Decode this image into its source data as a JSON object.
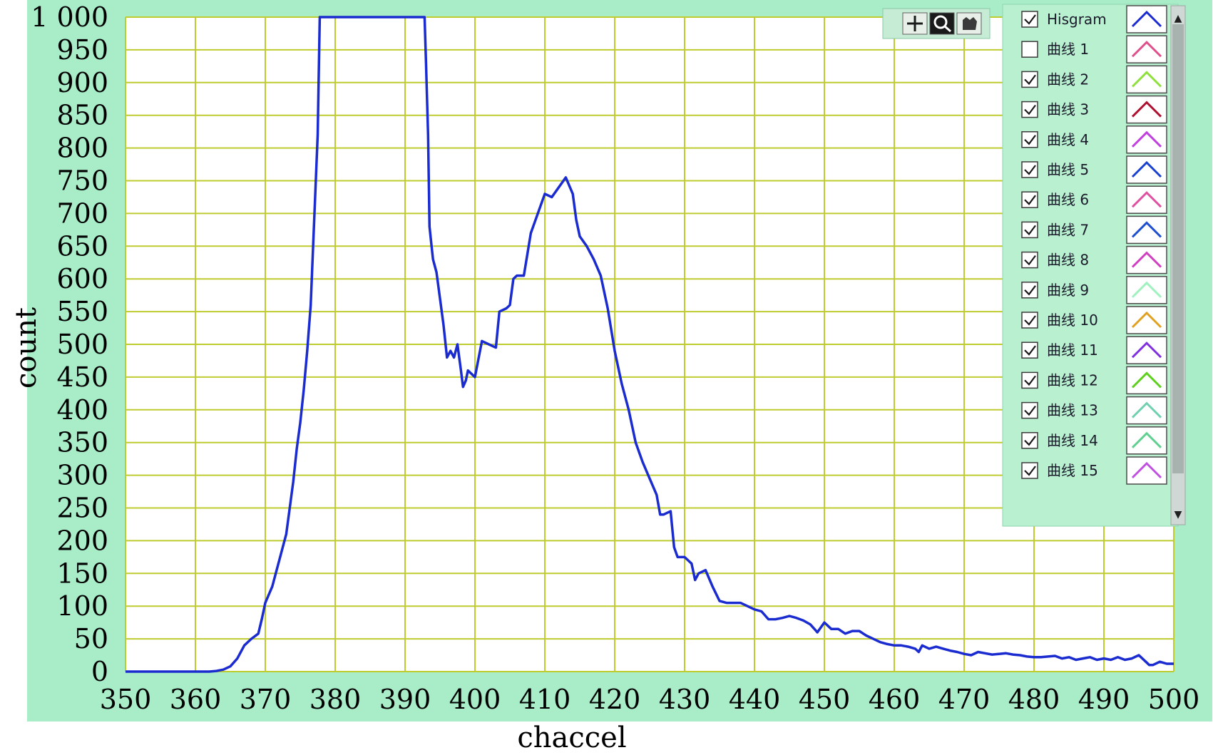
{
  "chart_data": {
    "type": "line",
    "xlabel": "chaccel",
    "ylabel": "count",
    "xlim": [
      350,
      500
    ],
    "ylim": [
      0,
      1000
    ],
    "x_ticks": [
      "350",
      "360",
      "370",
      "380",
      "390",
      "400",
      "410",
      "420",
      "430",
      "440",
      "450",
      "460",
      "470",
      "480",
      "490",
      "500"
    ],
    "y_ticks": [
      "0",
      "50",
      "100",
      "150",
      "200",
      "250",
      "300",
      "350",
      "400",
      "450",
      "500",
      "550",
      "600",
      "650",
      "700",
      "750",
      "800",
      "850",
      "900",
      "950",
      "1 000"
    ],
    "grid": true,
    "legend_position": "top-right",
    "series": [
      {
        "name": "Hisgram",
        "color": "#1a2bd0",
        "points": [
          [
            350,
            0
          ],
          [
            352,
            0
          ],
          [
            354,
            0
          ],
          [
            356,
            0
          ],
          [
            358,
            0
          ],
          [
            360,
            0
          ],
          [
            362,
            0
          ],
          [
            363,
            1
          ],
          [
            364,
            3
          ],
          [
            365,
            8
          ],
          [
            366,
            20
          ],
          [
            367,
            40
          ],
          [
            368,
            50
          ],
          [
            369,
            58
          ],
          [
            369.5,
            80
          ],
          [
            370,
            105
          ],
          [
            371,
            130
          ],
          [
            372,
            170
          ],
          [
            373,
            210
          ],
          [
            373.5,
            250
          ],
          [
            374,
            290
          ],
          [
            374.5,
            340
          ],
          [
            375,
            380
          ],
          [
            375.5,
            430
          ],
          [
            376,
            490
          ],
          [
            376.5,
            560
          ],
          [
            377,
            690
          ],
          [
            377.5,
            820
          ],
          [
            377.8,
            1000
          ],
          [
            392.8,
            1000
          ],
          [
            393,
            930
          ],
          [
            393.3,
            820
          ],
          [
            393.5,
            680
          ],
          [
            393.8,
            650
          ],
          [
            394,
            630
          ],
          [
            394.5,
            610
          ],
          [
            395,
            570
          ],
          [
            395.5,
            530
          ],
          [
            396,
            480
          ],
          [
            396.5,
            490
          ],
          [
            397,
            480
          ],
          [
            397.5,
            500
          ],
          [
            398,
            460
          ],
          [
            398.3,
            435
          ],
          [
            398.7,
            445
          ],
          [
            399,
            460
          ],
          [
            400,
            450
          ],
          [
            401,
            505
          ],
          [
            402,
            500
          ],
          [
            403,
            495
          ],
          [
            403.5,
            550
          ],
          [
            404.5,
            555
          ],
          [
            405,
            560
          ],
          [
            405.5,
            600
          ],
          [
            406,
            605
          ],
          [
            407,
            605
          ],
          [
            408,
            670
          ],
          [
            409,
            700
          ],
          [
            410,
            730
          ],
          [
            411,
            725
          ],
          [
            412,
            740
          ],
          [
            413,
            755
          ],
          [
            414,
            730
          ],
          [
            414.5,
            690
          ],
          [
            415,
            665
          ],
          [
            416,
            650
          ],
          [
            417,
            630
          ],
          [
            418,
            605
          ],
          [
            419,
            555
          ],
          [
            420,
            490
          ],
          [
            421,
            440
          ],
          [
            422,
            400
          ],
          [
            423,
            350
          ],
          [
            424,
            320
          ],
          [
            425,
            295
          ],
          [
            426,
            270
          ],
          [
            426.5,
            240
          ],
          [
            427,
            240
          ],
          [
            428,
            245
          ],
          [
            428.5,
            190
          ],
          [
            429,
            175
          ],
          [
            430,
            175
          ],
          [
            431,
            165
          ],
          [
            431.5,
            140
          ],
          [
            432,
            150
          ],
          [
            433,
            155
          ],
          [
            434,
            130
          ],
          [
            435,
            108
          ],
          [
            436,
            105
          ],
          [
            437,
            105
          ],
          [
            438,
            105
          ],
          [
            439,
            100
          ],
          [
            440,
            95
          ],
          [
            441,
            92
          ],
          [
            442,
            80
          ],
          [
            443,
            80
          ],
          [
            444,
            82
          ],
          [
            445,
            85
          ],
          [
            446,
            82
          ],
          [
            447,
            78
          ],
          [
            448,
            72
          ],
          [
            449,
            60
          ],
          [
            450,
            75
          ],
          [
            451,
            65
          ],
          [
            452,
            65
          ],
          [
            453,
            58
          ],
          [
            454,
            62
          ],
          [
            455,
            62
          ],
          [
            456,
            55
          ],
          [
            457,
            50
          ],
          [
            458,
            45
          ],
          [
            459,
            42
          ],
          [
            460,
            40
          ],
          [
            461,
            40
          ],
          [
            462,
            38
          ],
          [
            463,
            35
          ],
          [
            463.5,
            30
          ],
          [
            464,
            40
          ],
          [
            465,
            35
          ],
          [
            466,
            38
          ],
          [
            467,
            35
          ],
          [
            468,
            32
          ],
          [
            469,
            30
          ],
          [
            470,
            27
          ],
          [
            471,
            25
          ],
          [
            472,
            30
          ],
          [
            473,
            28
          ],
          [
            474,
            26
          ],
          [
            475,
            27
          ],
          [
            476,
            28
          ],
          [
            477,
            26
          ],
          [
            478,
            25
          ],
          [
            479,
            23
          ],
          [
            480,
            22
          ],
          [
            481,
            22
          ],
          [
            482,
            23
          ],
          [
            483,
            24
          ],
          [
            484,
            20
          ],
          [
            485,
            22
          ],
          [
            486,
            18
          ],
          [
            487,
            20
          ],
          [
            488,
            22
          ],
          [
            489,
            18
          ],
          [
            490,
            20
          ],
          [
            491,
            18
          ],
          [
            492,
            22
          ],
          [
            493,
            18
          ],
          [
            494,
            20
          ],
          [
            495,
            25
          ],
          [
            496,
            15
          ],
          [
            496.5,
            10
          ],
          [
            497,
            10
          ],
          [
            498,
            15
          ],
          [
            499,
            12
          ],
          [
            500,
            12
          ]
        ]
      }
    ]
  },
  "legend": {
    "items": [
      {
        "label": "Hisgram",
        "checked": true,
        "color": "#1a2bd0"
      },
      {
        "label": "曲线 1",
        "checked": false,
        "color": "#e0508a"
      },
      {
        "label": "曲线 2",
        "checked": true,
        "color": "#90e040"
      },
      {
        "label": "曲线 3",
        "checked": true,
        "color": "#b01030"
      },
      {
        "label": "曲线 4",
        "checked": true,
        "color": "#c040e0"
      },
      {
        "label": "曲线 5",
        "checked": true,
        "color": "#1a40d0"
      },
      {
        "label": "曲线 6",
        "checked": true,
        "color": "#e050a0"
      },
      {
        "label": "曲线 7",
        "checked": true,
        "color": "#2050d0"
      },
      {
        "label": "曲线 8",
        "checked": true,
        "color": "#d040c0"
      },
      {
        "label": "曲线 9",
        "checked": true,
        "color": "#a0f0c0"
      },
      {
        "label": "曲线 10",
        "checked": true,
        "color": "#e0a020"
      },
      {
        "label": "曲线 11",
        "checked": true,
        "color": "#8030e0"
      },
      {
        "label": "曲线 12",
        "checked": true,
        "color": "#60d020"
      },
      {
        "label": "曲线 13",
        "checked": true,
        "color": "#70d0b0"
      },
      {
        "label": "曲线 14",
        "checked": true,
        "color": "#60d090"
      },
      {
        "label": "曲线 15",
        "checked": true,
        "color": "#c050e0"
      }
    ]
  },
  "toolbar": {
    "icons": [
      "crosshair-icon",
      "zoom-icon",
      "pan-icon"
    ]
  },
  "colors": {
    "frame": "#a8ecc8",
    "plot_bg": "#ffffff",
    "grid": "#bfcc30",
    "legend_bg": "#b8f0d0",
    "scrollbar": "#cfd8d4"
  }
}
